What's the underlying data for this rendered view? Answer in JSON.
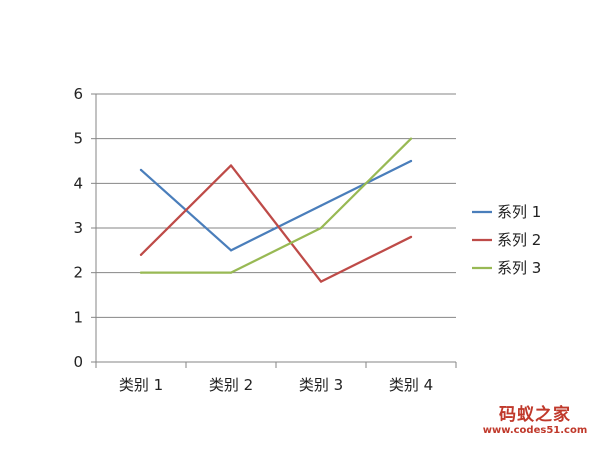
{
  "chart_data": {
    "type": "line",
    "categories": [
      "类别 1",
      "类别 2",
      "类别 3",
      "类别 4"
    ],
    "series": [
      {
        "name": "系列 1",
        "values": [
          4.3,
          2.5,
          3.5,
          4.5
        ],
        "color": "#4a7ebb"
      },
      {
        "name": "系列 2",
        "values": [
          2.4,
          4.4,
          1.8,
          2.8
        ],
        "color": "#be4b48"
      },
      {
        "name": "系列 3",
        "values": [
          2.0,
          2.0,
          3.0,
          5.0
        ],
        "color": "#98b954"
      }
    ],
    "yticks": [
      "0",
      "1",
      "2",
      "3",
      "4",
      "5",
      "6"
    ],
    "ylim": [
      0,
      6
    ],
    "grid": true,
    "legend_position": "right"
  },
  "watermark": {
    "title": "码蚁之家",
    "url": "www.codes51.com"
  }
}
